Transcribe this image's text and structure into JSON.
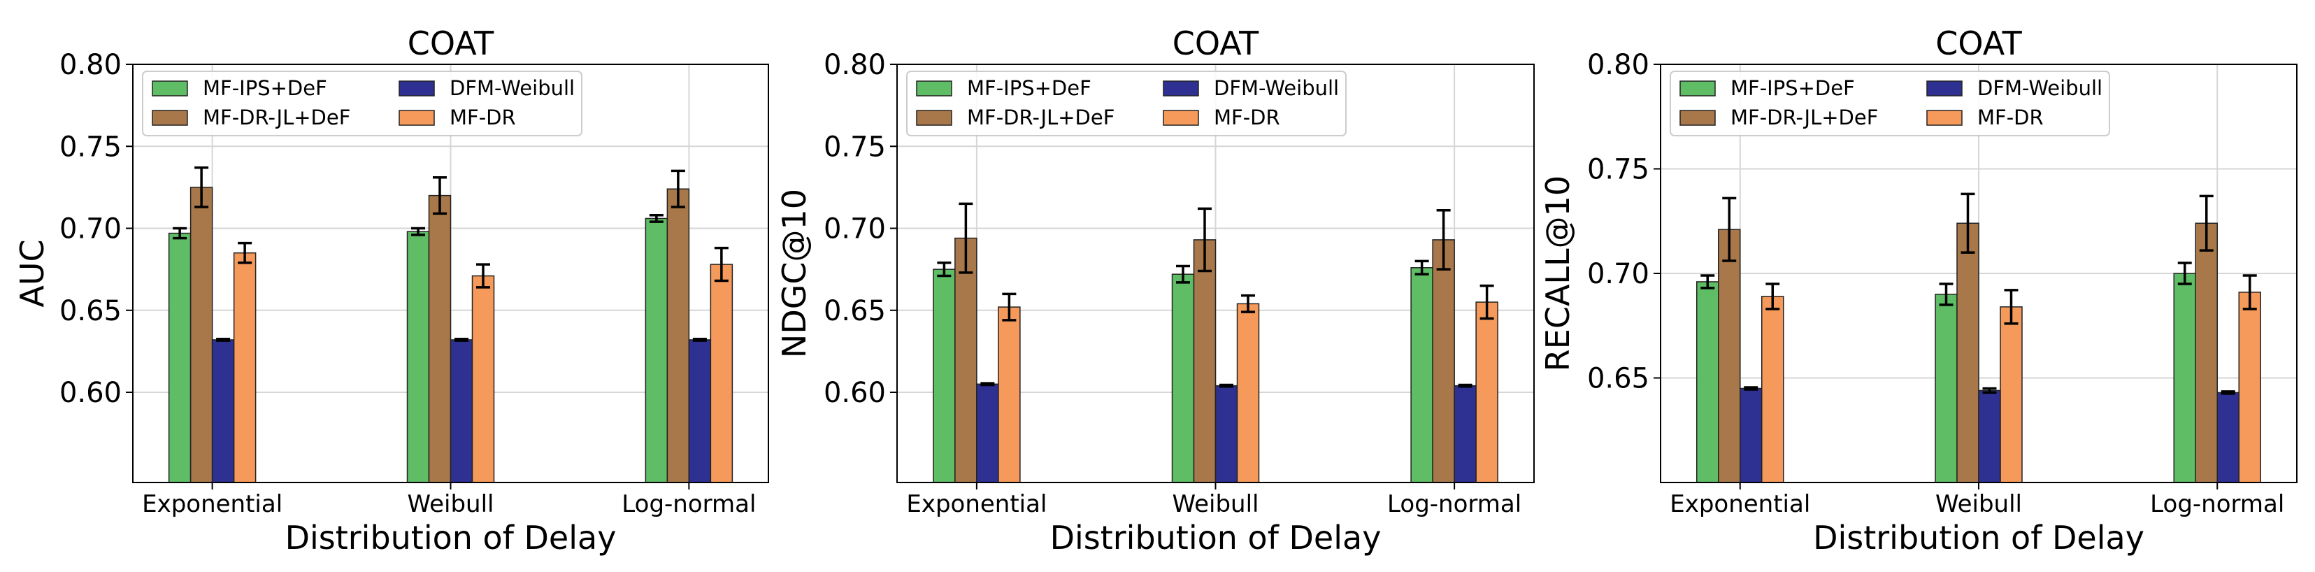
{
  "chart_data": [
    {
      "type": "bar",
      "title": "COAT",
      "xlabel": "Distribution of Delay",
      "ylabel": "AUC",
      "ylim": [
        0.545,
        0.8
      ],
      "yticks": [
        "0.60",
        "0.65",
        "0.70",
        "0.75",
        "0.80"
      ],
      "grid": true,
      "legend_position": "top-left",
      "categories": [
        "Exponential",
        "Weibull",
        "Log-normal"
      ],
      "series": [
        {
          "name": "MF-IPS+DeF",
          "color": "#5ebd65",
          "values": [
            0.697,
            0.698,
            0.706
          ],
          "errors": [
            0.003,
            0.002,
            0.002
          ]
        },
        {
          "name": "MF-DR-JL+DeF",
          "color": "#a8784a",
          "values": [
            0.725,
            0.72,
            0.724
          ],
          "errors": [
            0.012,
            0.011,
            0.011
          ]
        },
        {
          "name": "DFM-Weibull",
          "color": "#2e3192",
          "values": [
            0.632,
            0.632,
            0.632
          ],
          "errors": [
            0.0005,
            0.0005,
            0.0005
          ]
        },
        {
          "name": "MF-DR",
          "color": "#f59a5a",
          "values": [
            0.685,
            0.671,
            0.678
          ],
          "errors": [
            0.006,
            0.007,
            0.01
          ]
        }
      ]
    },
    {
      "type": "bar",
      "title": "COAT",
      "xlabel": "Distribution of Delay",
      "ylabel": "NDGC@10",
      "ylim": [
        0.545,
        0.8
      ],
      "yticks": [
        "0.60",
        "0.65",
        "0.70",
        "0.75",
        "0.80"
      ],
      "grid": true,
      "legend_position": "top-left",
      "categories": [
        "Exponential",
        "Weibull",
        "Log-normal"
      ],
      "series": [
        {
          "name": "MF-IPS+DeF",
          "color": "#5ebd65",
          "values": [
            0.675,
            0.672,
            0.676
          ],
          "errors": [
            0.004,
            0.005,
            0.004
          ]
        },
        {
          "name": "MF-DR-JL+DeF",
          "color": "#a8784a",
          "values": [
            0.694,
            0.693,
            0.693
          ],
          "errors": [
            0.021,
            0.019,
            0.018
          ]
        },
        {
          "name": "DFM-Weibull",
          "color": "#2e3192",
          "values": [
            0.605,
            0.604,
            0.604
          ],
          "errors": [
            0.0005,
            0.0005,
            0.0005
          ]
        },
        {
          "name": "MF-DR",
          "color": "#f59a5a",
          "values": [
            0.652,
            0.654,
            0.655
          ],
          "errors": [
            0.008,
            0.005,
            0.01
          ]
        }
      ]
    },
    {
      "type": "bar",
      "title": "COAT",
      "xlabel": "Distribution of Delay",
      "ylabel": "RECALL@10",
      "ylim": [
        0.6,
        0.8
      ],
      "yticks": [
        "0.65",
        "0.70",
        "0.75",
        "0.80"
      ],
      "grid": true,
      "legend_position": "top-left",
      "categories": [
        "Exponential",
        "Weibull",
        "Log-normal"
      ],
      "series": [
        {
          "name": "MF-IPS+DeF",
          "color": "#5ebd65",
          "values": [
            0.696,
            0.69,
            0.7
          ],
          "errors": [
            0.003,
            0.005,
            0.005
          ]
        },
        {
          "name": "MF-DR-JL+DeF",
          "color": "#a8784a",
          "values": [
            0.721,
            0.724,
            0.724
          ],
          "errors": [
            0.015,
            0.014,
            0.013
          ]
        },
        {
          "name": "DFM-Weibull",
          "color": "#2e3192",
          "values": [
            0.645,
            0.644,
            0.643
          ],
          "errors": [
            0.0005,
            0.001,
            0.0005
          ]
        },
        {
          "name": "MF-DR",
          "color": "#f59a5a",
          "values": [
            0.689,
            0.684,
            0.691
          ],
          "errors": [
            0.006,
            0.008,
            0.008
          ]
        }
      ]
    }
  ]
}
